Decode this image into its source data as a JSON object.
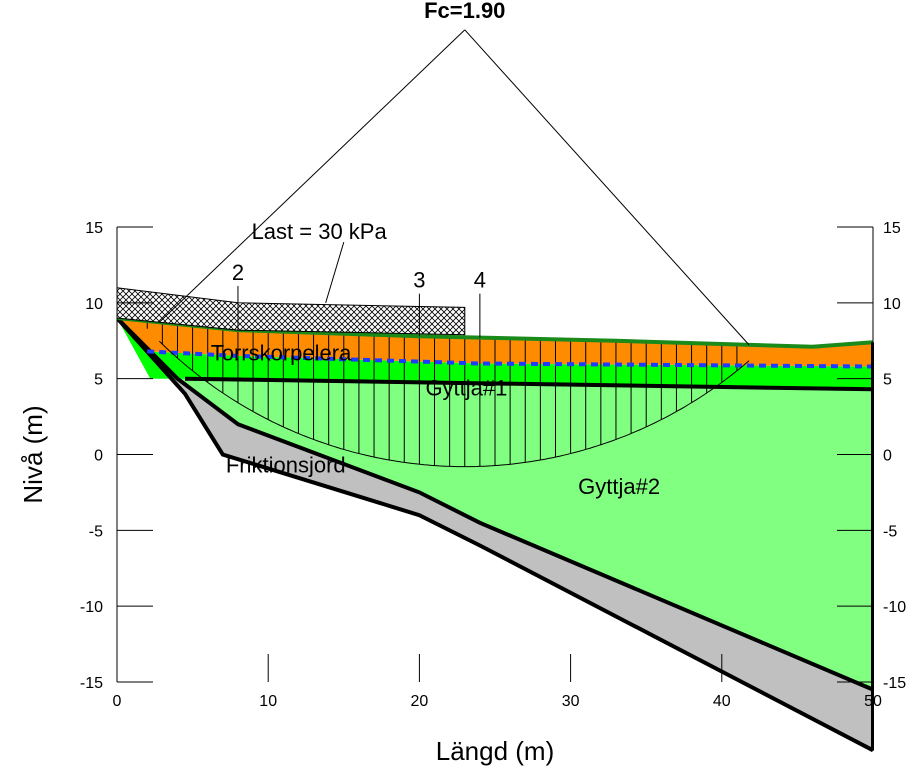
{
  "figure": {
    "factor_of_safety_label": "Fc=1.90",
    "load_label": "Last = 30 kPa",
    "x_axis_title": "Längd (m)",
    "y_axis_title": "Nivå (m)"
  },
  "axes": {
    "x_range": [
      0,
      50
    ],
    "y_range": [
      -15,
      15
    ],
    "x_ticks": [
      0,
      10,
      20,
      30,
      40,
      50
    ],
    "y_ticks": [
      15,
      10,
      5,
      0,
      -5,
      -10,
      -15
    ],
    "x_tick_labels": [
      "0",
      "10",
      "20",
      "30",
      "40",
      "50"
    ],
    "y_tick_labels_left": [
      "15",
      "10",
      "5",
      "0",
      "-5",
      "-10",
      "-15"
    ],
    "y_tick_labels_right": [
      "15",
      "10",
      "5",
      "0",
      "-5",
      "-10",
      "-15"
    ]
  },
  "layers": [
    {
      "name": "Torrskorpelera",
      "color": "#ff8c00"
    },
    {
      "name": "Gyttja#1",
      "color": "#00ff00"
    },
    {
      "name": "Gyttja#2",
      "color": "#80ff80"
    },
    {
      "name": "Friktionsjord",
      "color": "#c0c0c0"
    }
  ],
  "section_markers": [
    "2",
    "3",
    "4"
  ],
  "colors": {
    "ground_surface": "#1a8a1a",
    "water_table": "#1e3cff",
    "load_hatch": "#000000",
    "slip_surface": "#000000"
  },
  "geometry_data_m": {
    "ground_surface": [
      [
        0,
        9.0
      ],
      [
        8,
        8.2
      ],
      [
        20,
        7.8
      ],
      [
        33,
        7.5
      ],
      [
        46,
        7.1
      ],
      [
        50,
        7.4
      ]
    ],
    "clay_base": [
      [
        0,
        9.0
      ],
      [
        2,
        6.8
      ],
      [
        8,
        6.5
      ],
      [
        24,
        6.0
      ],
      [
        50,
        5.8
      ]
    ],
    "gyttja1_base": [
      [
        4.5,
        5.0
      ],
      [
        50,
        4.3
      ]
    ],
    "friction_top": [
      [
        0,
        9.0
      ],
      [
        4,
        5.0
      ],
      [
        8,
        2.0
      ],
      [
        20,
        -2.5
      ],
      [
        24,
        -4.5
      ],
      [
        50,
        -15.5
      ]
    ],
    "friction_bottom": [
      [
        0,
        9.0
      ],
      [
        4.5,
        4.0
      ],
      [
        7,
        0.0
      ],
      [
        20,
        -4.0
      ],
      [
        24,
        -6.0
      ],
      [
        50,
        -19.5
      ]
    ],
    "load_strip": [
      [
        0,
        11.0
      ],
      [
        8,
        10.0
      ],
      [
        23,
        9.7
      ],
      [
        23,
        7.9
      ],
      [
        8,
        8.2
      ],
      [
        0,
        9.0
      ]
    ],
    "slip_circle_center": [
      23,
      28
    ],
    "slip_circle_radius": 28.8,
    "slip_entry_x": 2.8,
    "slip_exit_x": 41.8,
    "load_pointer": [
      [
        15,
        14.0
      ],
      [
        13.8,
        10.0
      ]
    ],
    "section_marker_positions": [
      [
        8,
        11.5
      ],
      [
        20,
        11.0
      ],
      [
        24,
        11.0
      ]
    ]
  }
}
